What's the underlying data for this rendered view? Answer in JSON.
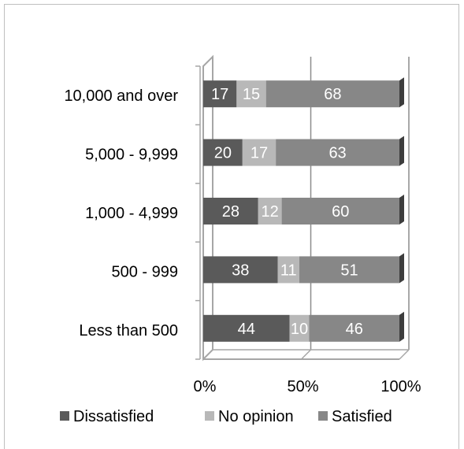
{
  "chart_data": {
    "type": "bar",
    "orientation": "horizontal",
    "stacked": true,
    "percent": true,
    "title": "",
    "xlabel": "",
    "ylabel": "",
    "xlim": [
      0,
      100
    ],
    "grid": true,
    "legend_position": "bottom",
    "categories": [
      "10,000 and over",
      "5,000 - 9,999",
      "1,000 - 4,999",
      "500 - 999",
      "Less than 500"
    ],
    "x_tick_labels": [
      "0%",
      "50%",
      "100%"
    ],
    "series": [
      {
        "name": "Dissatisfied",
        "color": "#5a5a5a",
        "values": [
          17,
          20,
          28,
          38,
          44
        ]
      },
      {
        "name": "No opinion",
        "color": "#b8b8b8",
        "values": [
          15,
          17,
          12,
          11,
          10
        ]
      },
      {
        "name": "Satisfied",
        "color": "#878787",
        "values": [
          68,
          63,
          60,
          51,
          46
        ]
      }
    ]
  }
}
